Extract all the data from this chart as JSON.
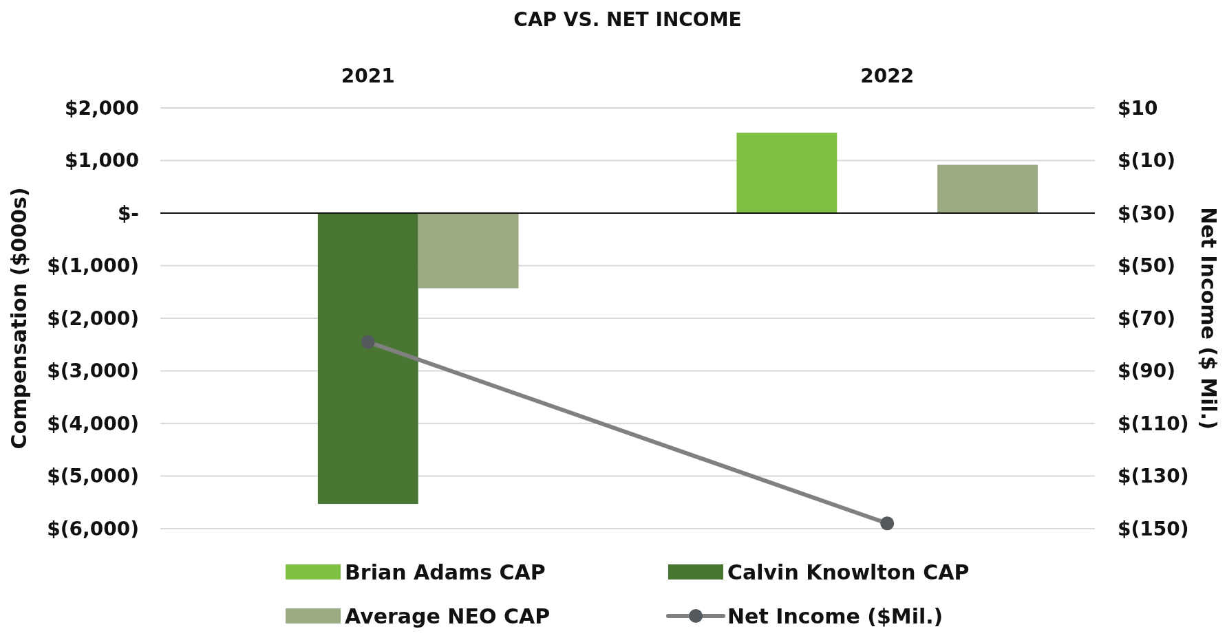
{
  "chart_data": {
    "type": "bar",
    "title": "CAP VS. NET INCOME",
    "categories": [
      "2021",
      "2022"
    ],
    "ylabel": "Compensation ($000s)",
    "y2label": "Net Income ($ Mil.)",
    "series": [
      {
        "name": "Brian Adams CAP",
        "color": "#7fbf42",
        "values": [
          null,
          1530
        ]
      },
      {
        "name": "Calvin Knowlton CAP",
        "color": "#4a7634",
        "values": [
          -5530,
          0
        ]
      },
      {
        "name": "Average NEO CAP",
        "color": "#9caa84",
        "values": [
          -1430,
          920
        ]
      },
      {
        "name": "Net Income ($Mil.)",
        "type": "line",
        "axis": "y2",
        "color": "#808080",
        "marker": "circle",
        "values": [
          -79,
          -148
        ]
      }
    ],
    "ylim": [
      -6000,
      2000
    ],
    "yticks": [
      {
        "value": 2000,
        "label": "$2,000"
      },
      {
        "value": 1000,
        "label": "$1,000"
      },
      {
        "value": 0,
        "label": "$-"
      },
      {
        "value": -1000,
        "label": "$(1,000)"
      },
      {
        "value": -2000,
        "label": "$(2,000)"
      },
      {
        "value": -3000,
        "label": "$(3,000)"
      },
      {
        "value": -4000,
        "label": "$(4,000)"
      },
      {
        "value": -5000,
        "label": "$(5,000)"
      },
      {
        "value": -6000,
        "label": "$(6,000)"
      }
    ],
    "y2lim": [
      -150,
      10
    ],
    "y2ticks": [
      {
        "value": 10,
        "label": "$10"
      },
      {
        "value": -10,
        "label": "$(10)"
      },
      {
        "value": -30,
        "label": "$(30)"
      },
      {
        "value": -50,
        "label": "$(50)"
      },
      {
        "value": -70,
        "label": "$(70)"
      },
      {
        "value": -90,
        "label": "$(90)"
      },
      {
        "value": -110,
        "label": "$(110)"
      },
      {
        "value": -130,
        "label": "$(130)"
      },
      {
        "value": -150,
        "label": "$(150)"
      }
    ],
    "grid": "y",
    "legend": "bottom"
  }
}
